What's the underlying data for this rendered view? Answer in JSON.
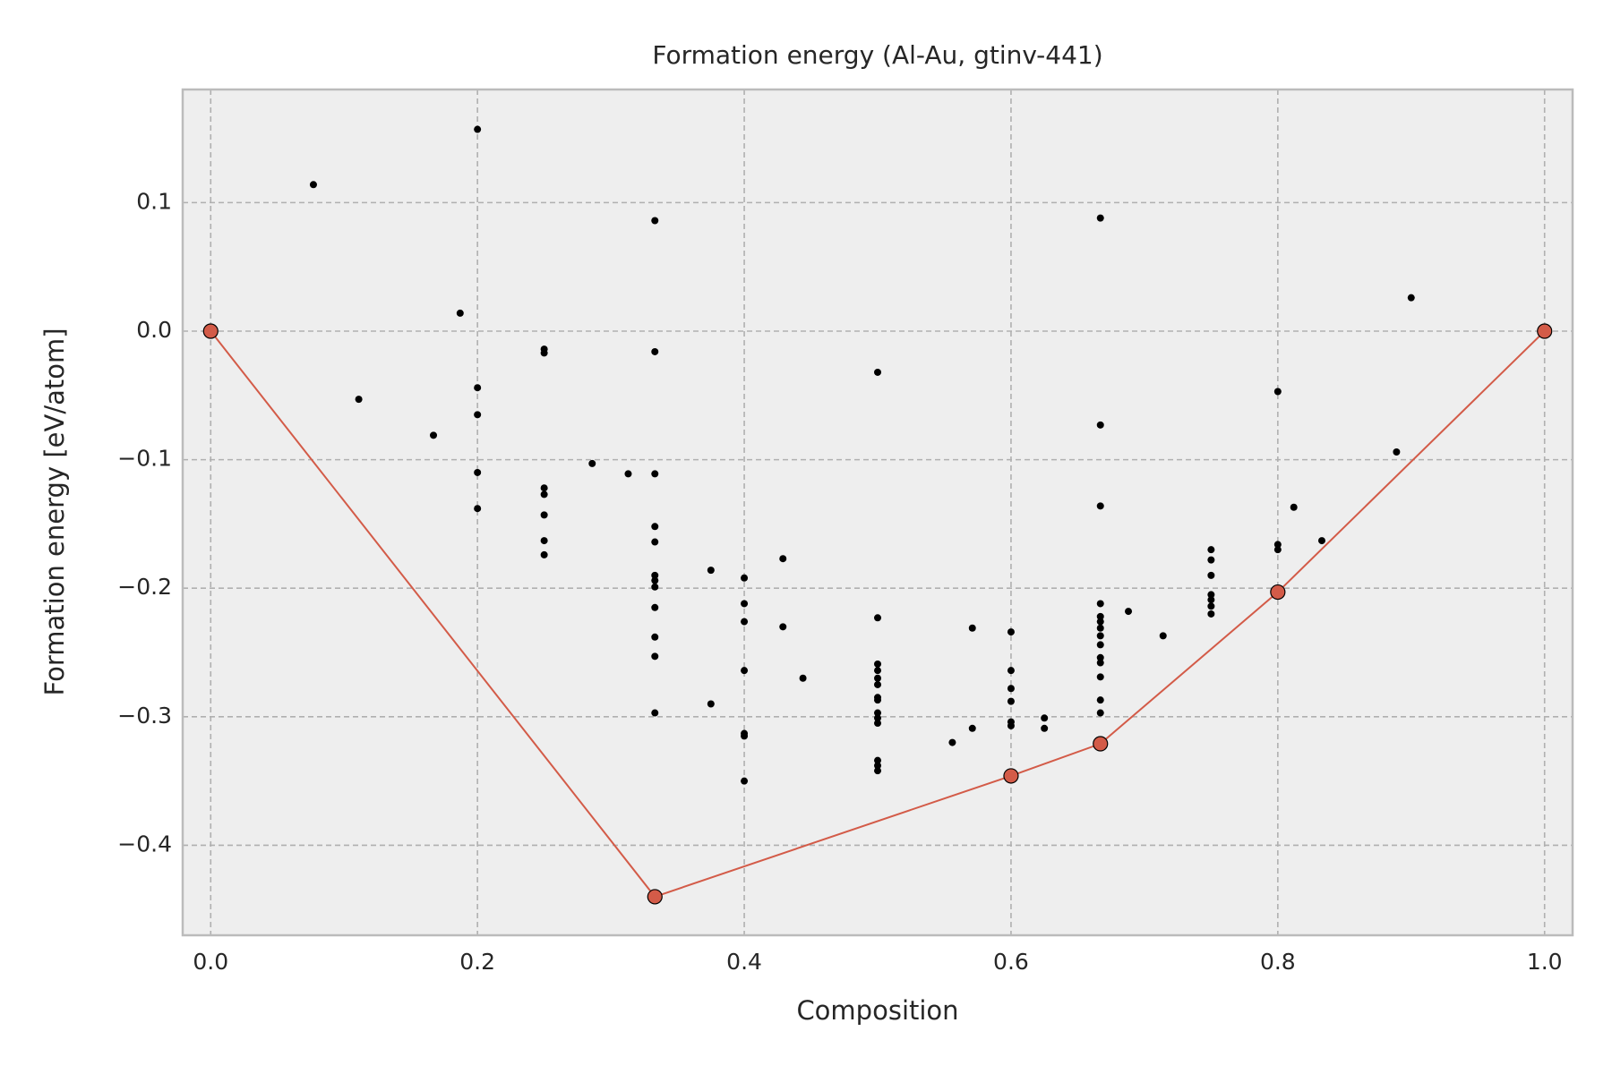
{
  "chart_data": {
    "type": "scatter",
    "title": "Formation energy (Al-Au, gtinv-441)",
    "x_label": "Composition",
    "y_label": "Formation energy [eV/atom]",
    "xlim": [
      -0.021,
      1.021
    ],
    "ylim": [
      -0.47,
      0.188
    ],
    "xticks": [
      {
        "value": 0,
        "label": "0.0"
      },
      0.2,
      0.4,
      0.6,
      0.8,
      {
        "value": 1,
        "label": "1.0"
      }
    ],
    "yticks": [
      {
        "value": -0.4,
        "label": "−0.4"
      },
      {
        "value": -0.3,
        "label": "−0.3"
      },
      {
        "value": -0.2,
        "label": "−0.2"
      },
      {
        "value": -0.1,
        "label": "−0.1"
      },
      {
        "value": 0,
        "label": "0.0"
      },
      0.1
    ],
    "grid": true,
    "series": [
      {
        "color": "#000000",
        "x": [
          0.077,
          0.111,
          0.167,
          0.187,
          0.2,
          0.2,
          0.2,
          0.2,
          0.2,
          0.25,
          0.25,
          0.25,
          0.25,
          0.25,
          0.25,
          0.25,
          0.286,
          0.313,
          0.333,
          0.333,
          0.333,
          0.333,
          0.333,
          0.333,
          0.333,
          0.333,
          0.333,
          0.333,
          0.333,
          0.333,
          0.375,
          0.375,
          0.4,
          0.4,
          0.4,
          0.4,
          0.4,
          0.4,
          0.4,
          0.429,
          0.429,
          0.444,
          0.5,
          0.5,
          0.5,
          0.5,
          0.5,
          0.5,
          0.5,
          0.5,
          0.5,
          0.5,
          0.5,
          0.5,
          0.5,
          0.5,
          0.556,
          0.571,
          0.571,
          0.6,
          0.6,
          0.6,
          0.6,
          0.6,
          0.6,
          0.625,
          0.625,
          0.667,
          0.667,
          0.667,
          0.667,
          0.667,
          0.667,
          0.667,
          0.667,
          0.667,
          0.667,
          0.667,
          0.667,
          0.667,
          0.667,
          0.688,
          0.714,
          0.75,
          0.75,
          0.75,
          0.75,
          0.75,
          0.75,
          0.75,
          0.8,
          0.8,
          0.8,
          0.812,
          0.833,
          0.889,
          0.9
        ],
        "values": [
          0.114,
          -0.053,
          -0.081,
          0.014,
          0.157,
          -0.044,
          -0.065,
          -0.11,
          -0.138,
          -0.014,
          -0.017,
          -0.122,
          -0.127,
          -0.143,
          -0.163,
          -0.174,
          -0.103,
          -0.111,
          0.086,
          -0.016,
          -0.111,
          -0.152,
          -0.164,
          -0.19,
          -0.194,
          -0.199,
          -0.215,
          -0.238,
          -0.253,
          -0.297,
          -0.186,
          -0.29,
          -0.192,
          -0.212,
          -0.226,
          -0.264,
          -0.313,
          -0.315,
          -0.35,
          -0.177,
          -0.23,
          -0.27,
          -0.032,
          -0.223,
          -0.259,
          -0.264,
          -0.27,
          -0.275,
          -0.285,
          -0.287,
          -0.297,
          -0.301,
          -0.305,
          -0.334,
          -0.338,
          -0.342,
          -0.32,
          -0.231,
          -0.309,
          -0.234,
          -0.264,
          -0.278,
          -0.288,
          -0.304,
          -0.307,
          -0.301,
          -0.309,
          0.088,
          -0.073,
          -0.136,
          -0.212,
          -0.222,
          -0.226,
          -0.231,
          -0.237,
          -0.244,
          -0.254,
          -0.258,
          -0.269,
          -0.287,
          -0.297,
          -0.218,
          -0.237,
          -0.17,
          -0.178,
          -0.19,
          -0.205,
          -0.209,
          -0.214,
          -0.22,
          -0.047,
          -0.166,
          -0.17,
          -0.137,
          -0.163,
          -0.094,
          0.026
        ]
      },
      {
        "color": "#d35b48",
        "line": true,
        "x": [
          0,
          0.333,
          0.6,
          0.667,
          0.8,
          1
        ],
        "values": [
          0,
          -0.44,
          -0.346,
          -0.321,
          -0.203,
          0
        ]
      }
    ]
  }
}
